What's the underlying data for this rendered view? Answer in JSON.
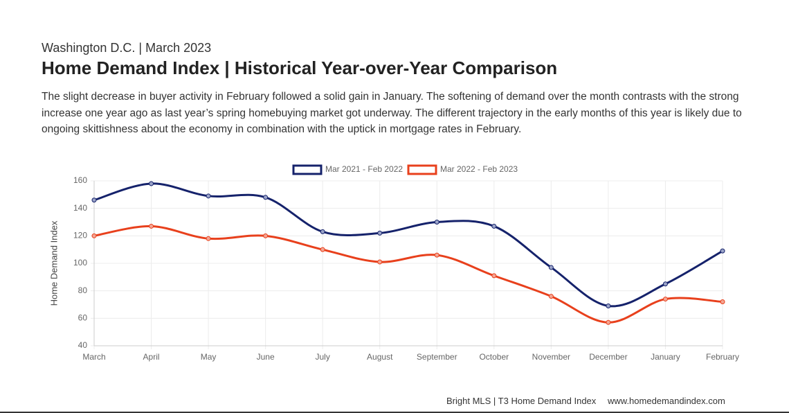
{
  "header": {
    "subtitle": "Washington D.C. | March 2023",
    "title": "Home Demand Index | Historical Year-over-Year Comparison",
    "description": "The slight decrease in buyer activity in February followed a solid gain in January. The softening of demand over the month contrasts with the strong increase one year ago as last year’s spring homebuying market got underway. The different trajectory in the early months of this year is likely due to ongoing skittishness about the economy in combination with the uptick in mortgage rates in February."
  },
  "chart_data": {
    "type": "line",
    "y_label": "Home Demand Index",
    "categories": [
      "March",
      "April",
      "May",
      "June",
      "July",
      "August",
      "September",
      "October",
      "November",
      "December",
      "January",
      "February"
    ],
    "series": [
      {
        "name": "Mar 2021 - Feb 2022",
        "color": "#15226b",
        "values": [
          146,
          158,
          149,
          148,
          123,
          122,
          130,
          127,
          97,
          69,
          85,
          109
        ]
      },
      {
        "name": "Mar 2022 - Feb 2023",
        "color": "#e8401c",
        "values": [
          120,
          127,
          118,
          120,
          110,
          101,
          106,
          91,
          76,
          57,
          74,
          72
        ]
      }
    ],
    "ylim": [
      40,
      160
    ],
    "yticks": [
      40,
      60,
      80,
      100,
      120,
      140,
      160
    ],
    "grid": true,
    "legend": "top"
  },
  "footer": {
    "source": "Bright MLS | T3 Home Demand Index",
    "url": "www.homedemandindex.com"
  }
}
